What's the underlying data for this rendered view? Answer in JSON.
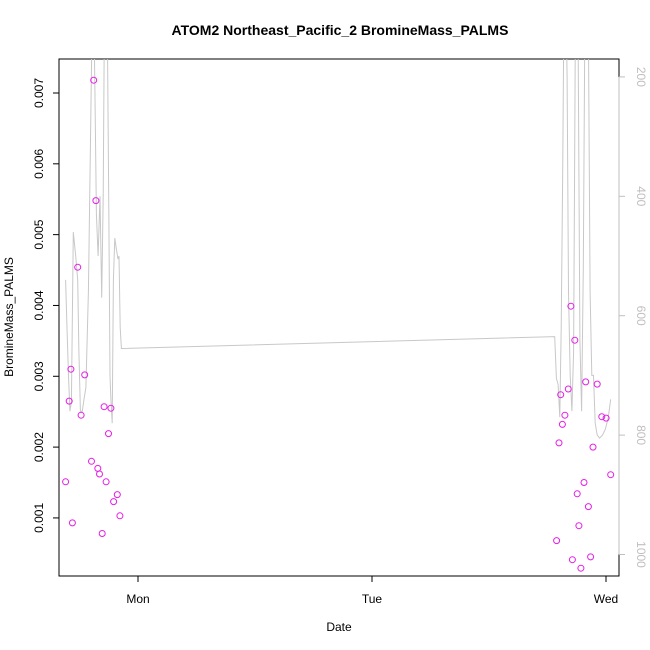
{
  "chart_data": {
    "type": "scatter",
    "title": "ATOM2 Northeast_Pacific_2 BromineMass_PALMS",
    "xlabel": "Date",
    "ylabel": "BromineMass_PALMS",
    "x_ticks": [
      "Mon",
      "Tue",
      "Wed"
    ],
    "y_ticks": [
      "0.001",
      "0.002",
      "0.003",
      "0.004",
      "0.005",
      "0.006",
      "0.007"
    ],
    "y_range": [
      0.00018,
      0.00748
    ],
    "y2_ticks": [
      "200",
      "400",
      "600",
      "800",
      "1000"
    ],
    "y2_range": [
      1036,
      170
    ],
    "y2_reversed": true,
    "x_range_days": [
      -0.277,
      2.03
    ],
    "colors": {
      "points": "#e61ee6",
      "line": "#c8c8c8",
      "axis": "#000000",
      "axis2": "#bfbfbf"
    },
    "points": [
      {
        "x": -0.25,
        "y": 0.00151
      },
      {
        "x": -0.235,
        "y": 0.00265
      },
      {
        "x": -0.228,
        "y": 0.0031
      },
      {
        "x": -0.222,
        "y": 0.00093
      },
      {
        "x": -0.2,
        "y": 0.00454
      },
      {
        "x": -0.186,
        "y": 0.00245
      },
      {
        "x": -0.171,
        "y": 0.00302
      },
      {
        "x": -0.143,
        "y": 0.0018
      },
      {
        "x": -0.134,
        "y": 0.00718
      },
      {
        "x": -0.125,
        "y": 0.00548
      },
      {
        "x": -0.117,
        "y": 0.0017
      },
      {
        "x": -0.11,
        "y": 0.00162
      },
      {
        "x": -0.099,
        "y": 0.00078
      },
      {
        "x": -0.091,
        "y": 0.00257
      },
      {
        "x": -0.083,
        "y": 0.00151
      },
      {
        "x": -0.073,
        "y": 0.00219
      },
      {
        "x": -0.063,
        "y": 0.00255
      },
      {
        "x": -0.052,
        "y": 0.00123
      },
      {
        "x": -0.037,
        "y": 0.00133
      },
      {
        "x": -0.026,
        "y": 0.00103
      },
      {
        "x": 1.773,
        "y": 0.00068
      },
      {
        "x": 1.783,
        "y": 0.00206
      },
      {
        "x": 1.79,
        "y": 0.00274
      },
      {
        "x": 1.797,
        "y": 0.00232
      },
      {
        "x": 1.807,
        "y": 0.00245
      },
      {
        "x": 1.821,
        "y": 0.00282
      },
      {
        "x": 1.832,
        "y": 0.00399
      },
      {
        "x": 1.838,
        "y": 0.00041
      },
      {
        "x": 1.848,
        "y": 0.00351
      },
      {
        "x": 1.858,
        "y": 0.00134
      },
      {
        "x": 1.865,
        "y": 0.00089
      },
      {
        "x": 1.873,
        "y": 0.00029
      },
      {
        "x": 1.886,
        "y": 0.0015
      },
      {
        "x": 1.893,
        "y": 0.00292
      },
      {
        "x": 1.904,
        "y": 0.00116
      },
      {
        "x": 1.913,
        "y": 0.00045
      },
      {
        "x": 1.923,
        "y": 0.002
      },
      {
        "x": 1.94,
        "y": 0.00289
      },
      {
        "x": 1.959,
        "y": 0.00243
      },
      {
        "x": 1.977,
        "y": 0.00241
      },
      {
        "x": 1.996,
        "y": 0.00161
      }
    ],
    "pressure_line": [
      {
        "x": -0.25,
        "y": 540
      },
      {
        "x": -0.245,
        "y": 610
      },
      {
        "x": -0.238,
        "y": 700
      },
      {
        "x": -0.232,
        "y": 760
      },
      {
        "x": -0.226,
        "y": 745
      },
      {
        "x": -0.218,
        "y": 460
      },
      {
        "x": -0.208,
        "y": 500
      },
      {
        "x": -0.2,
        "y": 540
      },
      {
        "x": -0.195,
        "y": 660
      },
      {
        "x": -0.189,
        "y": 760
      },
      {
        "x": -0.181,
        "y": 760
      },
      {
        "x": -0.174,
        "y": 740
      },
      {
        "x": -0.166,
        "y": 720
      },
      {
        "x": -0.156,
        "y": 560
      },
      {
        "x": -0.148,
        "y": 330
      },
      {
        "x": -0.141,
        "y": 120
      },
      {
        "x": -0.135,
        "y": 50
      },
      {
        "x": -0.129,
        "y": 220
      },
      {
        "x": -0.123,
        "y": 430
      },
      {
        "x": -0.116,
        "y": 500
      },
      {
        "x": -0.108,
        "y": 400
      },
      {
        "x": -0.101,
        "y": 570
      },
      {
        "x": -0.095,
        "y": 400
      },
      {
        "x": -0.09,
        "y": 100
      },
      {
        "x": -0.083,
        "y": 20
      },
      {
        "x": -0.077,
        "y": 150
      },
      {
        "x": -0.072,
        "y": 420
      },
      {
        "x": -0.067,
        "y": 700
      },
      {
        "x": -0.063,
        "y": 740
      },
      {
        "x": -0.058,
        "y": 780
      },
      {
        "x": -0.053,
        "y": 540
      },
      {
        "x": -0.047,
        "y": 470
      },
      {
        "x": -0.04,
        "y": 490
      },
      {
        "x": -0.034,
        "y": 505
      },
      {
        "x": -0.03,
        "y": 500
      },
      {
        "x": -0.025,
        "y": 620
      },
      {
        "x": -0.02,
        "y": 655
      },
      {
        "x": 1.765,
        "y": 635
      },
      {
        "x": 1.772,
        "y": 705
      },
      {
        "x": 1.779,
        "y": 715
      },
      {
        "x": 1.786,
        "y": 770
      },
      {
        "x": 1.792,
        "y": 620
      },
      {
        "x": 1.798,
        "y": 360
      },
      {
        "x": 1.804,
        "y": 40
      },
      {
        "x": 1.81,
        "y": 40
      },
      {
        "x": 1.816,
        "y": 200
      },
      {
        "x": 1.822,
        "y": 560
      },
      {
        "x": 1.829,
        "y": 700
      },
      {
        "x": 1.836,
        "y": 760
      },
      {
        "x": 1.843,
        "y": 660
      },
      {
        "x": 1.85,
        "y": 140
      },
      {
        "x": 1.856,
        "y": 20
      },
      {
        "x": 1.862,
        "y": 160
      },
      {
        "x": 1.869,
        "y": 640
      },
      {
        "x": 1.876,
        "y": 760
      },
      {
        "x": 1.883,
        "y": 520
      },
      {
        "x": 1.89,
        "y": 70
      },
      {
        "x": 1.897,
        "y": 40
      },
      {
        "x": 1.904,
        "y": 120
      },
      {
        "x": 1.911,
        "y": 560
      },
      {
        "x": 1.918,
        "y": 700
      },
      {
        "x": 1.925,
        "y": 700
      },
      {
        "x": 1.932,
        "y": 780
      },
      {
        "x": 1.94,
        "y": 800
      },
      {
        "x": 1.95,
        "y": 805
      },
      {
        "x": 1.962,
        "y": 800
      },
      {
        "x": 1.974,
        "y": 790
      },
      {
        "x": 1.986,
        "y": 770
      },
      {
        "x": 1.996,
        "y": 740
      }
    ]
  }
}
